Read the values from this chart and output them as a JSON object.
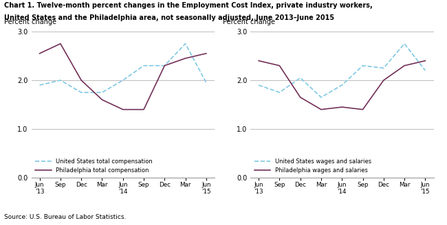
{
  "title_line1": "Chart 1. Twelve-month percent changes in the Employment Cost Index, private industry workers,",
  "title_line2": "United States and the Philadelphia area, not seasonally adjusted, June 2013–June 2015",
  "source": "Source: U.S. Bureau of Labor Statistics.",
  "x_labels": [
    "Jun\n'13",
    "Sep",
    "Dec",
    "Mar",
    "Jun\n'14",
    "Sep",
    "Dec",
    "Mar",
    "Jun\n'15"
  ],
  "x_positions": [
    0,
    1,
    2,
    3,
    4,
    5,
    6,
    7,
    8
  ],
  "chart1": {
    "ylabel": "Percent change",
    "ylim": [
      0.0,
      3.0
    ],
    "yticks": [
      0.0,
      1.0,
      2.0,
      3.0
    ],
    "us_total_comp": [
      1.9,
      2.0,
      1.75,
      1.75,
      2.0,
      2.3,
      2.3,
      2.75,
      1.95
    ],
    "phila_total_comp": [
      2.55,
      2.75,
      2.0,
      1.6,
      1.4,
      1.4,
      2.3,
      2.45,
      2.55
    ],
    "legend1": "United States total compensation",
    "legend2": "Philadelphia total compensation"
  },
  "chart2": {
    "ylabel": "Percent change",
    "ylim": [
      0.0,
      3.0
    ],
    "yticks": [
      0.0,
      1.0,
      2.0,
      3.0
    ],
    "us_wages": [
      1.9,
      1.75,
      2.05,
      1.65,
      1.9,
      2.3,
      2.25,
      2.75,
      2.2
    ],
    "phila_wages": [
      2.4,
      2.3,
      1.65,
      1.4,
      1.45,
      1.4,
      2.0,
      2.3,
      2.4
    ],
    "legend1": "United States wages and salaries",
    "legend2": "Philadelphia wages and salaries"
  },
  "us_color": "#7ec8e3",
  "phila_color": "#722f57",
  "grid_color": "#bbbbbb",
  "bg_color": "#ffffff"
}
